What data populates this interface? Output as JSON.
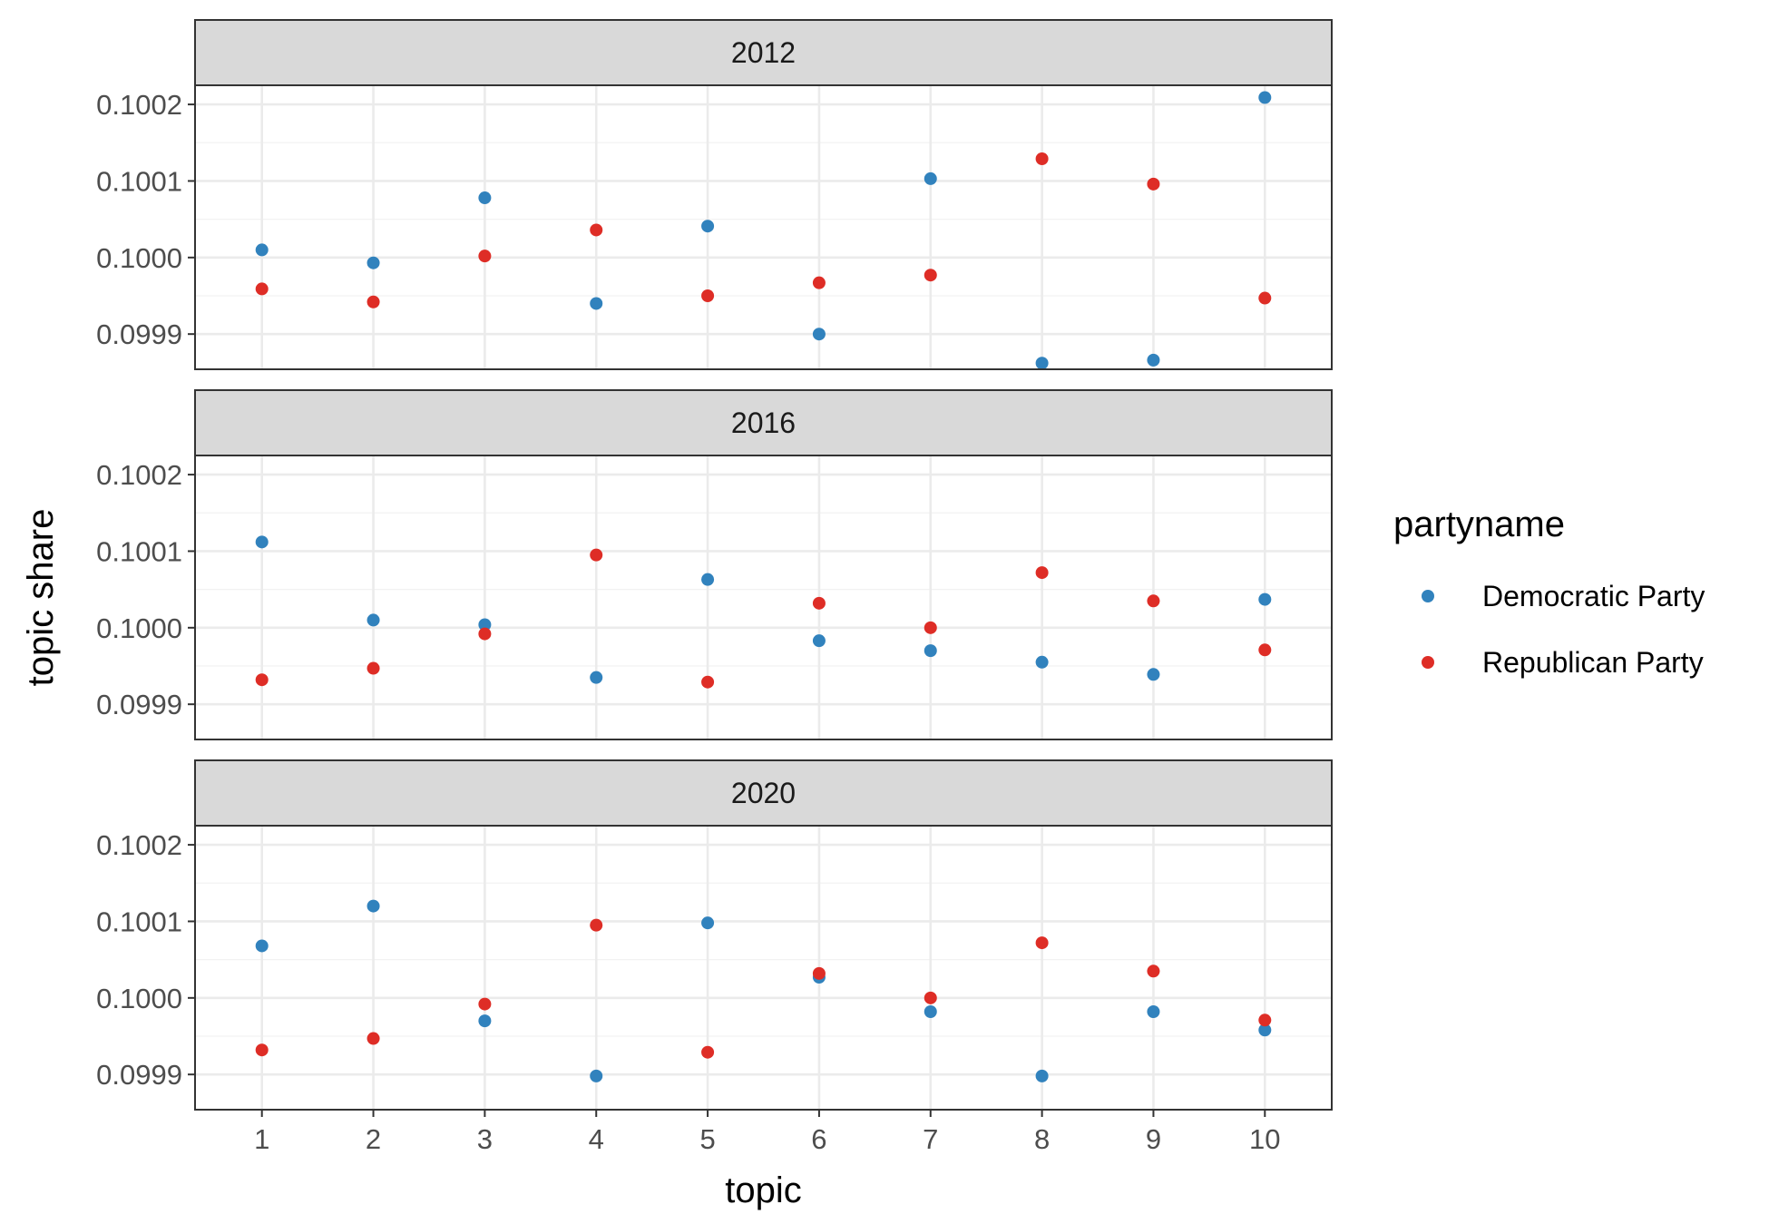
{
  "chart_data": {
    "type": "scatter",
    "facet_by": "year",
    "xlabel": "topic",
    "ylabel": "topic share",
    "x_ticks": [
      1,
      2,
      3,
      4,
      5,
      6,
      7,
      8,
      9,
      10
    ],
    "y_ticks": [
      0.0999,
      0.1,
      0.1001,
      0.1002
    ],
    "y_tick_labels": [
      "0.0999",
      "0.1000",
      "0.1001",
      "0.1002"
    ],
    "xlim": [
      0.4,
      10.6
    ],
    "ylim": [
      0.099854,
      0.100225
    ],
    "grid": true,
    "legend": {
      "title": "partyname",
      "placement": "right",
      "entries": [
        {
          "name": "Democratic Party",
          "color": "#3182bd"
        },
        {
          "name": "Republican Party",
          "color": "#de2d26"
        }
      ]
    },
    "panels": [
      {
        "label": "2012",
        "series": [
          {
            "name": "Democratic Party",
            "x": [
              1,
              2,
              3,
              4,
              5,
              6,
              7,
              8,
              9,
              10
            ],
            "y": [
              0.10001,
              0.099993,
              0.100078,
              0.09994,
              0.100041,
              0.0999,
              0.100103,
              0.099862,
              0.099866,
              0.100209
            ]
          },
          {
            "name": "Republican Party",
            "x": [
              1,
              2,
              3,
              4,
              5,
              6,
              7,
              8,
              9,
              10
            ],
            "y": [
              0.099959,
              0.099942,
              0.100002,
              0.100036,
              0.09995,
              0.099967,
              0.099977,
              0.100129,
              0.100096,
              0.099947
            ]
          }
        ]
      },
      {
        "label": "2016",
        "series": [
          {
            "name": "Democratic Party",
            "x": [
              1,
              2,
              3,
              4,
              5,
              6,
              7,
              8,
              9,
              10
            ],
            "y": [
              0.100112,
              0.10001,
              0.100004,
              0.099935,
              0.100063,
              0.099983,
              0.09997,
              0.099955,
              0.099939,
              0.100037
            ]
          },
          {
            "name": "Republican Party",
            "x": [
              1,
              2,
              3,
              4,
              5,
              6,
              7,
              8,
              9,
              10
            ],
            "y": [
              0.099932,
              0.099947,
              0.099992,
              0.100095,
              0.099929,
              0.100032,
              0.1,
              0.100072,
              0.100035,
              0.099971
            ]
          }
        ]
      },
      {
        "label": "2020",
        "series": [
          {
            "name": "Democratic Party",
            "x": [
              1,
              2,
              3,
              4,
              5,
              6,
              7,
              8,
              9,
              10
            ],
            "y": [
              0.100068,
              0.10012,
              0.09997,
              0.099898,
              0.100098,
              0.100027,
              0.099982,
              0.099898,
              0.099982,
              0.099958
            ]
          },
          {
            "name": "Republican Party",
            "x": [
              1,
              2,
              3,
              4,
              5,
              6,
              7,
              8,
              9,
              10
            ],
            "y": [
              0.099932,
              0.099947,
              0.099992,
              0.100095,
              0.099929,
              0.100032,
              0.1,
              0.100072,
              0.100035,
              0.099971
            ]
          }
        ]
      }
    ]
  }
}
